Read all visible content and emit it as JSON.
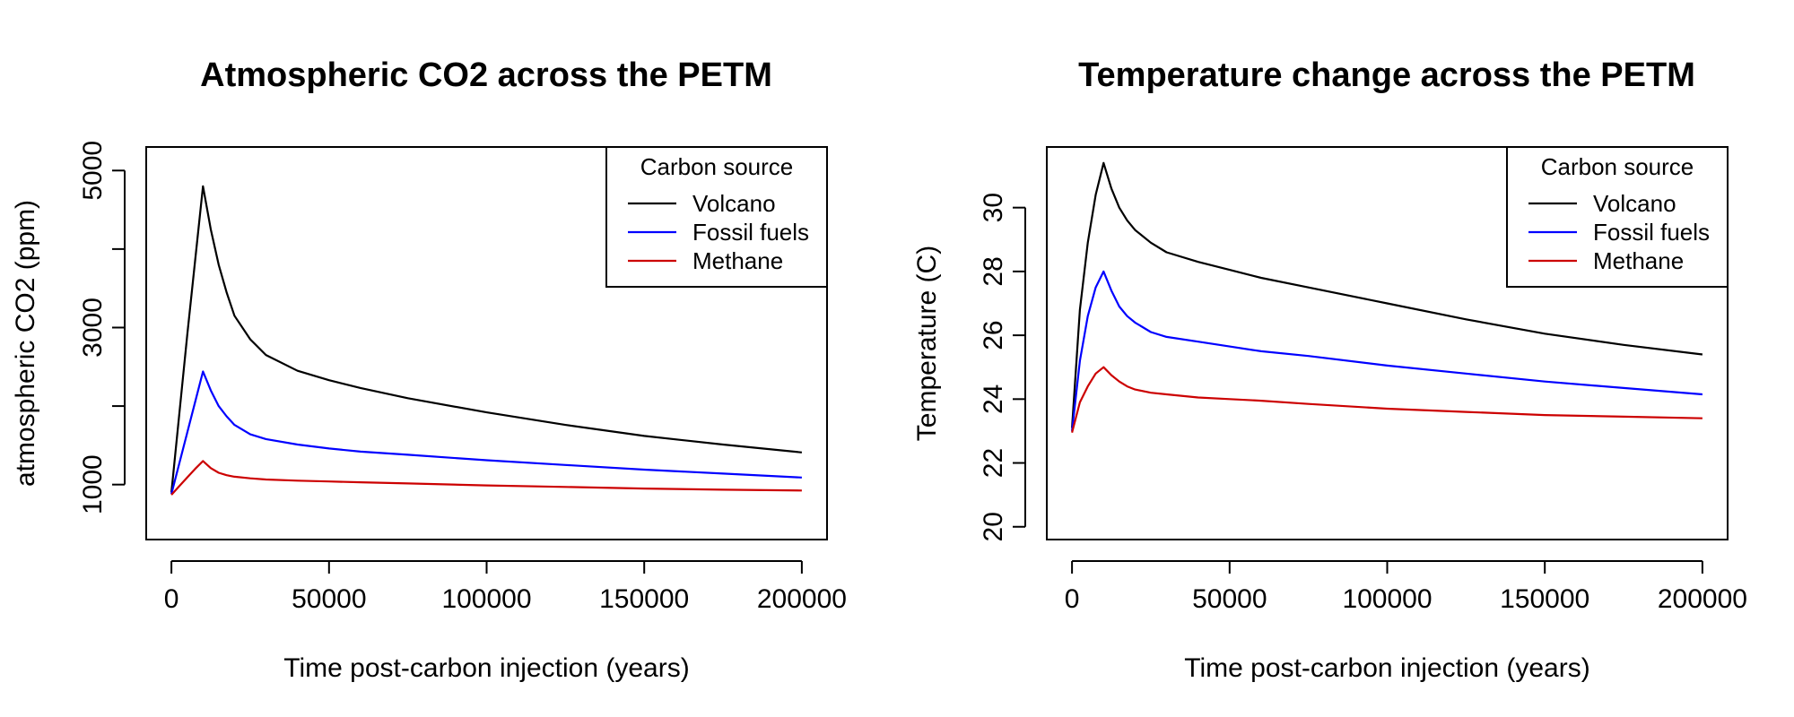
{
  "chart_data": [
    {
      "type": "line",
      "title": "Atmospheric CO2 across the PETM",
      "xlabel": "Time post-carbon injection (years)",
      "ylabel": "atmospheric CO2 (ppm)",
      "xlim": [
        -8000,
        208000
      ],
      "ylim": [
        300,
        5300
      ],
      "xticks": [
        0,
        50000,
        100000,
        150000,
        200000
      ],
      "xtick_labels": [
        "0",
        "50000",
        "100000",
        "150000",
        "200000"
      ],
      "yticks": [
        1000,
        2000,
        3000,
        4000,
        5000
      ],
      "ytick_labels": [
        "1000",
        "",
        "3000",
        "",
        "5000"
      ],
      "grid": false,
      "legend": {
        "title": "Carbon source",
        "position": "top-right"
      },
      "x": [
        0,
        2500,
        5000,
        7500,
        10000,
        12500,
        15000,
        17500,
        20000,
        25000,
        30000,
        40000,
        50000,
        60000,
        75000,
        100000,
        125000,
        150000,
        175000,
        200000
      ],
      "series": [
        {
          "name": "Volcano",
          "color": "#000000",
          "values": [
            900,
            1900,
            2900,
            3850,
            4800,
            4250,
            3800,
            3450,
            3150,
            2850,
            2650,
            2450,
            2330,
            2230,
            2100,
            1920,
            1760,
            1620,
            1510,
            1410
          ]
        },
        {
          "name": "Fossil fuels",
          "color": "#0000ff",
          "values": [
            880,
            1270,
            1660,
            2050,
            2440,
            2200,
            2000,
            1870,
            1760,
            1640,
            1580,
            1510,
            1460,
            1420,
            1380,
            1310,
            1250,
            1190,
            1140,
            1090
          ]
        },
        {
          "name": "Methane",
          "color": "#cc0000",
          "values": [
            870,
            980,
            1090,
            1200,
            1300,
            1210,
            1150,
            1120,
            1100,
            1080,
            1065,
            1050,
            1040,
            1030,
            1015,
            990,
            970,
            950,
            935,
            925
          ]
        }
      ]
    },
    {
      "type": "line",
      "title": "Temperature change across the PETM",
      "xlabel": "Time post-carbon injection (years)",
      "ylabel": "Temperature (C)",
      "xlim": [
        -8000,
        208000
      ],
      "ylim": [
        19.6,
        31.9
      ],
      "xticks": [
        0,
        50000,
        100000,
        150000,
        200000
      ],
      "xtick_labels": [
        "0",
        "50000",
        "100000",
        "150000",
        "200000"
      ],
      "yticks": [
        20,
        22,
        24,
        26,
        28,
        30
      ],
      "ytick_labels": [
        "20",
        "22",
        "24",
        "26",
        "28",
        "30"
      ],
      "grid": false,
      "legend": {
        "title": "Carbon source",
        "position": "top-right"
      },
      "x": [
        0,
        2500,
        5000,
        7500,
        10000,
        12500,
        15000,
        17500,
        20000,
        25000,
        30000,
        40000,
        50000,
        60000,
        75000,
        100000,
        125000,
        150000,
        175000,
        200000
      ],
      "series": [
        {
          "name": "Volcano",
          "color": "#000000",
          "values": [
            23.1,
            26.8,
            28.9,
            30.4,
            31.4,
            30.6,
            30.0,
            29.6,
            29.3,
            28.9,
            28.6,
            28.3,
            28.05,
            27.8,
            27.5,
            27.0,
            26.5,
            26.05,
            25.7,
            25.4
          ]
        },
        {
          "name": "Fossil fuels",
          "color": "#0000ff",
          "values": [
            23.0,
            25.2,
            26.6,
            27.5,
            28.0,
            27.4,
            26.9,
            26.6,
            26.4,
            26.1,
            25.95,
            25.8,
            25.65,
            25.5,
            25.35,
            25.05,
            24.8,
            24.55,
            24.35,
            24.15
          ]
        },
        {
          "name": "Methane",
          "color": "#cc0000",
          "values": [
            22.95,
            23.9,
            24.4,
            24.8,
            25.0,
            24.75,
            24.55,
            24.4,
            24.3,
            24.2,
            24.15,
            24.05,
            24.0,
            23.95,
            23.85,
            23.7,
            23.6,
            23.5,
            23.45,
            23.4
          ]
        }
      ]
    }
  ]
}
